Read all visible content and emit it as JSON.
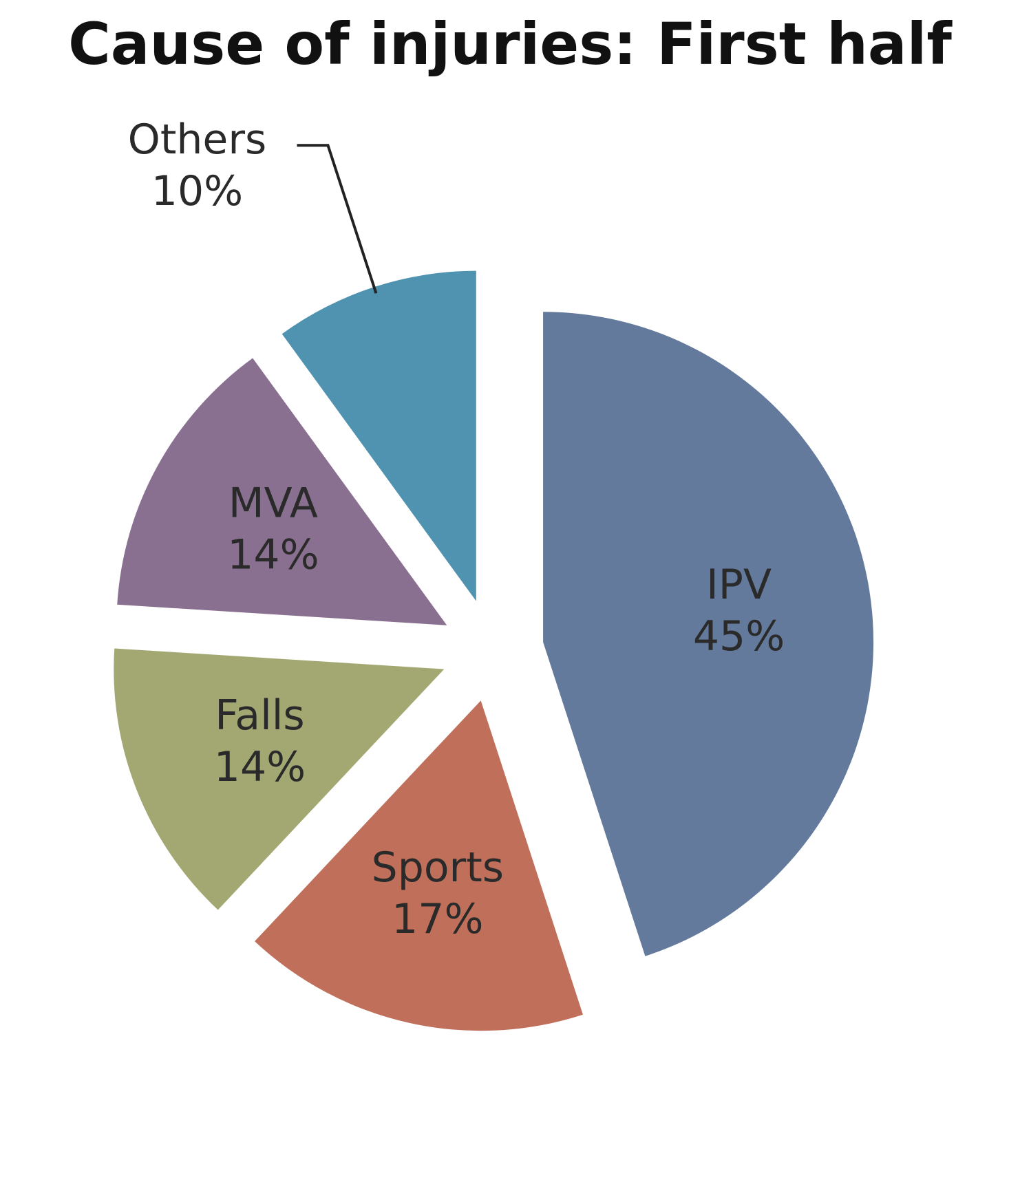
{
  "chart_data": {
    "type": "pie",
    "title": "Cause of injuries: First half",
    "categories": [
      "IPV",
      "Sports",
      "Falls",
      "MVA",
      "Others"
    ],
    "values": [
      45,
      17,
      14,
      14,
      10
    ],
    "value_labels": [
      "45%",
      "17%",
      "14%",
      "14%",
      "10%"
    ],
    "colors": [
      "#647a9c",
      "#c0705a",
      "#a3a873",
      "#8a7090",
      "#4f93b0"
    ]
  }
}
